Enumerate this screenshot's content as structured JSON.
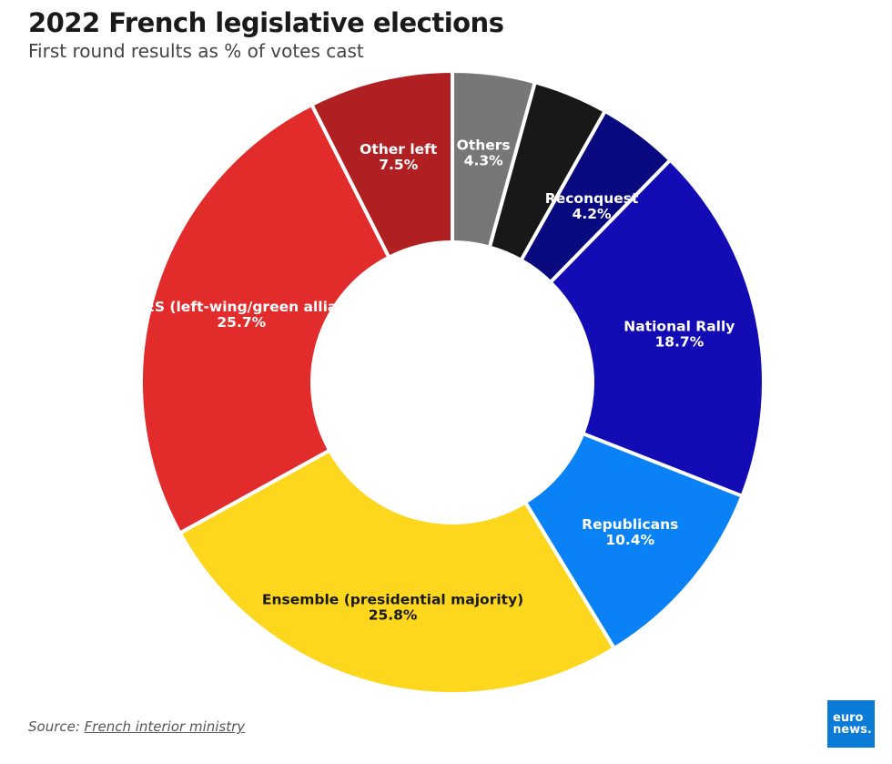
{
  "header": {
    "title": "2022 French legislative elections",
    "subtitle": "First round results as % of votes cast"
  },
  "footer": {
    "source_prefix": "Source: ",
    "source_link": "French interior ministry",
    "logo_line1": "euro",
    "logo_line2": "news."
  },
  "chart_data": {
    "type": "pie",
    "variant": "donut",
    "title": "2022 French legislative elections",
    "subtitle": "First round results as % of votes cast",
    "unit": "%",
    "slices": [
      {
        "name": "Others",
        "value": 4.3,
        "display": "4.3%",
        "color": "#777777",
        "text_color": "#ffffff"
      },
      {
        "name": "",
        "value": 3.9,
        "display": "",
        "color": "#181818",
        "text_color": "#ffffff"
      },
      {
        "name": "Reconquest",
        "value": 4.2,
        "display": "4.2%",
        "color": "#0a0a80",
        "text_color": "#ffffff"
      },
      {
        "name": "National Rally",
        "value": 18.7,
        "display": "18.7%",
        "color": "#130cb4",
        "text_color": "#ffffff"
      },
      {
        "name": "Republicans",
        "value": 10.4,
        "display": "10.4%",
        "color": "#0a82f5",
        "text_color": "#ffffff"
      },
      {
        "name": "Ensemble (presidential majority)",
        "value": 25.8,
        "display": "25.8%",
        "color": "#fcd71e",
        "text_color": "#1a1a1a"
      },
      {
        "name": "NUPES (left-wing/green alliance)",
        "value": 25.7,
        "display": "25.7%",
        "color": "#e22b2b",
        "text_color": "#ffffff"
      },
      {
        "name": "Other left",
        "value": 7.5,
        "display": "7.5%",
        "color": "#b02022",
        "text_color": "#ffffff"
      }
    ]
  }
}
